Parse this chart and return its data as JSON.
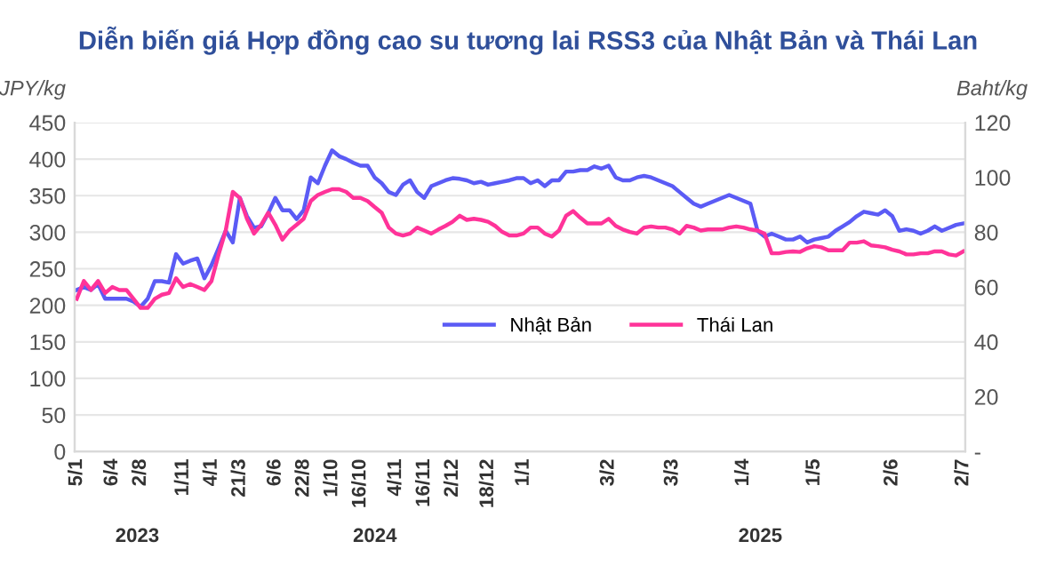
{
  "chart_data": {
    "type": "line",
    "title": "Diễn biến giá Hợp đồng cao su tương lai RSS3 của Nhật Bản và Thái Lan",
    "ylabel": "JPY/kg",
    "y2label": "Baht/kg",
    "categories": [
      "5/1",
      null,
      null,
      null,
      null,
      "6/4",
      null,
      null,
      null,
      "2/8",
      null,
      null,
      null,
      null,
      null,
      "1/11",
      null,
      null,
      null,
      "4/1",
      null,
      null,
      null,
      "21/3",
      null,
      null,
      null,
      null,
      "6/6",
      null,
      null,
      null,
      "22/8",
      null,
      null,
      null,
      "1/10",
      null,
      null,
      null,
      "16/10",
      null,
      null,
      null,
      null,
      "4/11",
      null,
      null,
      null,
      "16/11",
      null,
      null,
      null,
      "2/12",
      null,
      null,
      null,
      null,
      "18/12",
      null,
      null,
      null,
      null,
      "1/1",
      null,
      null,
      null,
      null,
      null,
      null,
      null,
      null,
      null,
      null,
      null,
      "3/2",
      null,
      null,
      null,
      null,
      null,
      null,
      null,
      null,
      "3/3",
      null,
      null,
      null,
      null,
      null,
      null,
      null,
      null,
      null,
      "1/4",
      null,
      null,
      null,
      null,
      null,
      null,
      null,
      null,
      null,
      "1/5",
      null,
      null,
      null,
      null,
      null,
      null,
      null,
      null,
      null,
      null,
      "2/6",
      null,
      null,
      null,
      null,
      null,
      null,
      null,
      null,
      null,
      "2/7"
    ],
    "series": [
      {
        "name": "Nhật Bản",
        "color": "#5b5bf5",
        "values": [
          221,
          225,
          221,
          229,
          209,
          209,
          209,
          209,
          205,
          198,
          209,
          233,
          233,
          231,
          270,
          257,
          261,
          264,
          237,
          255,
          278,
          302,
          286,
          347,
          322,
          306,
          308,
          326,
          347,
          330,
          330,
          318,
          330,
          375,
          367,
          391,
          412,
          404,
          400,
          395,
          391,
          391,
          375,
          367,
          355,
          351,
          365,
          371,
          355,
          347,
          363,
          367,
          371,
          374,
          373,
          371,
          367,
          369,
          365,
          367,
          369,
          371,
          374,
          374,
          367,
          371,
          363,
          371,
          371,
          383,
          383,
          385,
          385,
          390,
          387,
          391,
          375,
          371,
          371,
          375,
          377,
          375,
          371,
          367,
          363,
          355,
          347,
          339,
          335,
          339,
          343,
          347,
          351,
          347,
          343,
          339,
          302,
          294,
          298,
          294,
          290,
          290,
          294,
          286,
          290,
          292,
          294,
          302,
          308,
          314,
          322,
          328,
          326,
          324,
          330,
          322,
          302,
          304,
          302,
          298,
          302,
          308,
          302,
          306,
          310,
          312
        ]
      },
      {
        "name": "Thái Lan",
        "color": "#ff3399",
        "axis": "y2",
        "values": [
          55.7,
          62.2,
          58.9,
          62.2,
          57.8,
          60.0,
          58.9,
          58.9,
          55.7,
          52.4,
          52.4,
          55.7,
          57.2,
          57.8,
          63.2,
          60.0,
          61.1,
          60.0,
          58.9,
          62.2,
          71.9,
          80.6,
          94.7,
          92.5,
          84.9,
          79.5,
          82.7,
          87.1,
          82.7,
          77.3,
          80.6,
          82.7,
          84.9,
          91.4,
          93.6,
          94.7,
          95.7,
          95.7,
          94.7,
          92.5,
          92.5,
          91.4,
          89.2,
          87.1,
          81.7,
          79.5,
          78.8,
          79.5,
          81.7,
          80.6,
          79.5,
          81.0,
          82.3,
          83.8,
          86.0,
          84.5,
          84.9,
          84.5,
          83.8,
          82.3,
          80.1,
          78.8,
          78.8,
          79.5,
          81.7,
          81.7,
          79.5,
          78.4,
          80.6,
          86.0,
          87.7,
          85.3,
          83.2,
          83.2,
          83.2,
          84.9,
          82.3,
          81.0,
          80.1,
          79.5,
          81.7,
          82.1,
          81.7,
          81.7,
          81.0,
          79.5,
          82.3,
          81.7,
          80.6,
          81.0,
          81.0,
          81.0,
          81.7,
          82.1,
          81.7,
          81.0,
          80.6,
          79.5,
          72.3,
          72.3,
          72.8,
          73.0,
          72.8,
          74.1,
          74.9,
          74.5,
          73.4,
          73.4,
          73.4,
          76.2,
          76.2,
          76.7,
          75.2,
          74.9,
          74.5,
          73.6,
          73.0,
          71.9,
          71.9,
          72.3,
          72.3,
          73.0,
          73.0,
          71.9,
          71.5,
          73.0
        ]
      }
    ],
    "ylim": [
      0,
      450
    ],
    "yticks": [
      0,
      50,
      100,
      150,
      200,
      250,
      300,
      350,
      400,
      450
    ],
    "y2lim": [
      0,
      120
    ],
    "y2ticks": [
      {
        "value": 0,
        "label": "-"
      },
      20,
      40,
      60,
      80,
      100,
      120
    ],
    "annotations": [
      "2023",
      "2024",
      "2025"
    ],
    "grid": "y",
    "legend": "center",
    "marker": "none",
    "line_style": "solid"
  }
}
